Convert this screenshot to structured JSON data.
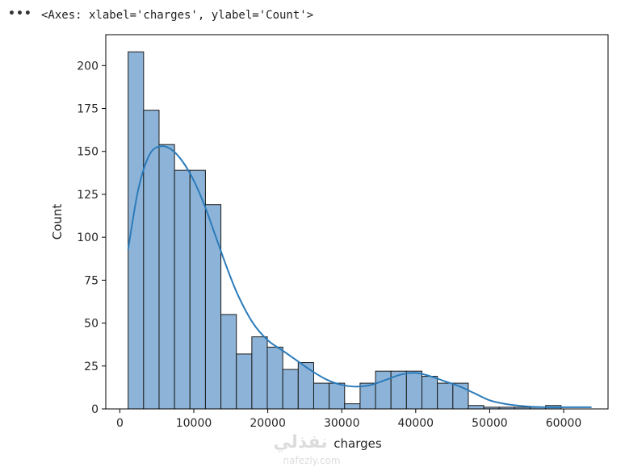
{
  "output": {
    "menu_glyph": "•••",
    "repr_text": "<Axes: xlabel='charges', ylabel='Count'>"
  },
  "watermark": {
    "logo_text": "نفذلي",
    "site_text": "nafezly.com"
  },
  "chart_data": {
    "type": "bar",
    "subtype": "histogram-with-kde",
    "title": "",
    "xlabel": "charges",
    "ylabel": "Count",
    "xlim": [
      -1900,
      66000
    ],
    "ylim": [
      0,
      218
    ],
    "xticks": [
      0,
      10000,
      20000,
      30000,
      40000,
      50000,
      60000
    ],
    "yticks": [
      0,
      25,
      50,
      75,
      100,
      125,
      150,
      175,
      200
    ],
    "grid": false,
    "bin_start": 1121.87,
    "bin_width": 2090.35,
    "values": [
      208,
      174,
      154,
      139,
      139,
      119,
      55,
      32,
      42,
      36,
      23,
      27,
      15,
      15,
      3,
      15,
      22,
      22,
      22,
      19,
      15,
      15,
      2,
      1,
      1,
      1,
      1,
      2
    ],
    "kde": {
      "x": [
        1121.87,
        2500,
        4000,
        5500,
        7000,
        8500,
        10000,
        11500,
        13000,
        14500,
        16000,
        18000,
        20000,
        22000,
        24000,
        26000,
        28000,
        30000,
        32000,
        34000,
        36000,
        38000,
        40000,
        42000,
        44000,
        46000,
        48000,
        50000,
        52000,
        55000,
        58000,
        61000,
        63770
      ],
      "y": [
        93,
        128,
        148,
        153,
        151,
        144,
        133,
        118,
        100,
        82,
        66,
        50,
        40,
        34,
        28,
        22,
        17,
        14,
        13,
        14,
        17,
        20,
        21,
        19,
        16,
        13,
        9,
        5,
        3,
        1.5,
        1,
        1,
        1
      ]
    },
    "colors": {
      "bar_fill": "#8db4d8",
      "bar_edge": "#1a1a1a",
      "kde_line": "#2b7bba",
      "axis": "#000000"
    }
  }
}
